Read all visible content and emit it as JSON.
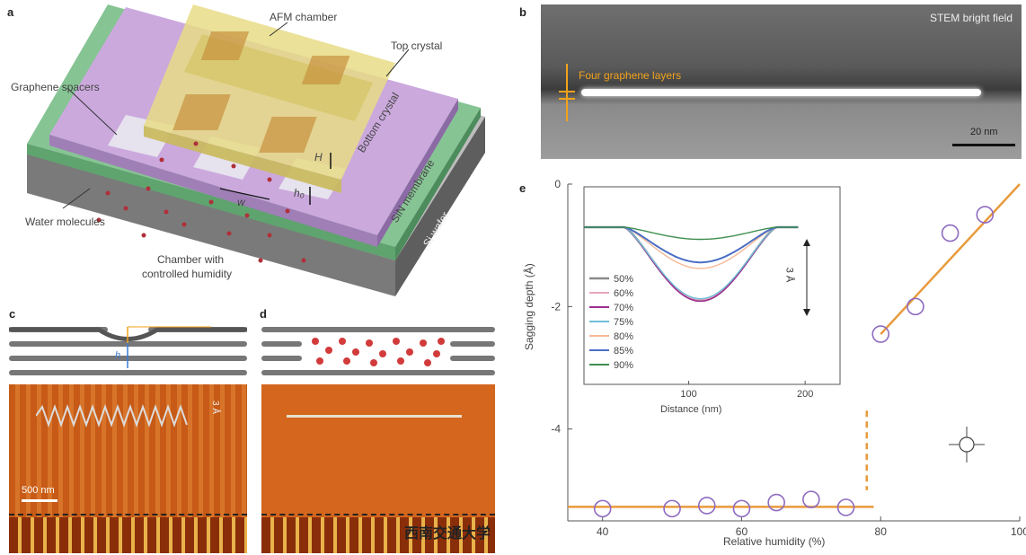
{
  "panel_a": {
    "letter": "a",
    "labels": {
      "afm_chamber": "AFM chamber",
      "top_crystal": "Top crystal",
      "graphene_spacers": "Graphene spacers",
      "bottom_crystal": "Bottom crystal",
      "sin_membrane": "SiN membrane",
      "si_wafer": "Si wafer",
      "water_molecules": "Water molecules",
      "chamber_line1": "Chamber with",
      "chamber_line2": "controlled humidity",
      "H": "H",
      "h0": "h₀",
      "w": "w"
    },
    "colors": {
      "purple": "#c9a9d9",
      "green": "#7fbf8f",
      "gray": "#9a9a9a",
      "gold": "#e8d77a",
      "water": "#b0303a"
    }
  },
  "panel_b": {
    "letter": "b",
    "title": "STEM bright field",
    "annotation": "Four graphene layers",
    "scale_bar": "20 nm",
    "colors": {
      "annotation": "#f2a31b"
    }
  },
  "panel_c": {
    "letter": "c",
    "scale_bar": "500 nm",
    "h_label": "h",
    "amp_label": "3 Å"
  },
  "panel_d": {
    "letter": "d"
  },
  "panel_e": {
    "letter": "e",
    "watermark": "西南交通大学",
    "chart_data": {
      "type": "scatter",
      "xlabel": "Relative humidity (%)",
      "ylabel": "Sagging depth (Å)",
      "xlim": [
        35,
        100
      ],
      "ylim": [
        -5.5,
        0
      ],
      "xticks": [
        "40",
        "60",
        "80",
        "100"
      ],
      "yticks": [
        "0",
        "-2",
        "-4"
      ],
      "points": [
        {
          "x": 40,
          "y": -5.3
        },
        {
          "x": 50,
          "y": -5.3
        },
        {
          "x": 55,
          "y": -5.25
        },
        {
          "x": 60,
          "y": -5.3
        },
        {
          "x": 65,
          "y": -5.2
        },
        {
          "x": 70,
          "y": -5.15
        },
        {
          "x": 75,
          "y": -5.28
        },
        {
          "x": 80,
          "y": -2.45
        },
        {
          "x": 85,
          "y": -2.0
        },
        {
          "x": 90,
          "y": -0.8
        },
        {
          "x": 95,
          "y": -0.5
        }
      ],
      "fit_low": {
        "x": [
          35,
          79
        ],
        "y": [
          -5.27,
          -5.27
        ]
      },
      "fit_high": {
        "x": [
          80,
          100
        ],
        "y": [
          -2.45,
          0
        ]
      },
      "transition_x": 78,
      "colors": {
        "marker": "#8e6bc0",
        "fit": "#e89a3c"
      },
      "inset": {
        "type": "line",
        "xlabel": "Distance (nm)",
        "xticks": [
          "100",
          "200"
        ],
        "xlim": [
          10,
          230
        ],
        "scale_label": "3 Å",
        "legend": [
          "50%",
          "60%",
          "70%",
          "75%",
          "80%",
          "85%",
          "90%"
        ],
        "series": [
          {
            "name": "50%",
            "color": "#8a8a8a",
            "depth": 3.0,
            "width": 2.5
          },
          {
            "name": "60%",
            "color": "#e6a6b8",
            "depth": 3.0,
            "width": 1.4
          },
          {
            "name": "70%",
            "color": "#9b2d8f",
            "depth": 3.05,
            "width": 1.6
          },
          {
            "name": "75%",
            "color": "#6fbfd8",
            "depth": 2.95,
            "width": 1.4
          },
          {
            "name": "80%",
            "color": "#f5b896",
            "depth": 1.7,
            "width": 1.4
          },
          {
            "name": "85%",
            "color": "#4a6fc4",
            "depth": 1.45,
            "width": 2.0
          },
          {
            "name": "90%",
            "color": "#3f8f4f",
            "depth": 0.5,
            "width": 1.4
          }
        ]
      }
    }
  }
}
